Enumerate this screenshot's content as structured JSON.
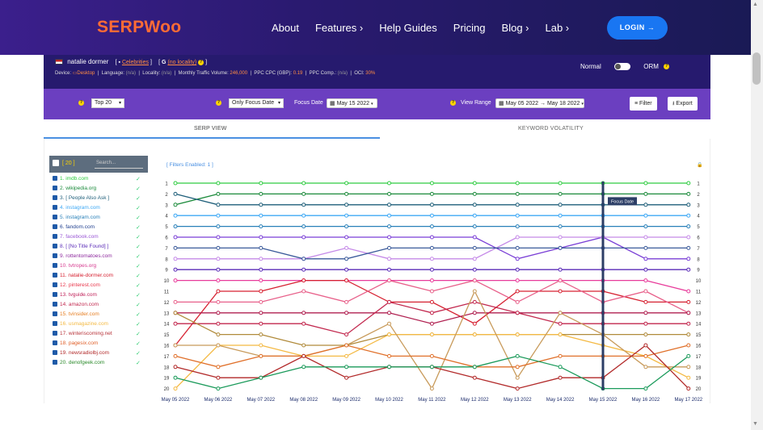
{
  "nav": {
    "logo": "SERPWoo",
    "items": [
      "About",
      "Features ›",
      "Help Guides",
      "Pricing",
      "Blog ›",
      "Lab ›"
    ],
    "login": "LOGIN →"
  },
  "info": {
    "keyword": "natalie dormer",
    "category": "Celebrities",
    "engine": "G",
    "locality": "(no locality)",
    "device_label": "Device:",
    "device": "Desktop",
    "language_label": "Language:",
    "language": "(n/a)",
    "locality_label": "Locality:",
    "locality_val": "(n/a)",
    "traffic_label": "Monthly Traffic Volume:",
    "traffic": "246,000",
    "ppc_label": "PPC CPC (GBP):",
    "ppc": "0.19",
    "comp_label": "PPC Comp.:",
    "comp": "(n/a)",
    "oci_label": "OCI:",
    "oci": "30%",
    "mode_normal": "Normal",
    "mode_orm": "ORM"
  },
  "filters": {
    "top": "Top 20",
    "focus_only": "Only Focus Date",
    "focus_date_label": "Focus Date",
    "focus_date": "May 15 2022",
    "view_range_label": "View Range",
    "view_range": "May 05 2022 → May 18 2022",
    "filter_btn": "Filter",
    "export_btn": "Export"
  },
  "tabs": {
    "serp_view": "SERP VIEW",
    "volatility": "KEYWORD VOLATILITY"
  },
  "panel": {
    "count": "[ 20 ]",
    "search_placeholder": "Search...",
    "filters_enabled": "[ Filters Enabled: 1 ]"
  },
  "domains": [
    {
      "label": "1. imdb.com",
      "color": "#2ecc40"
    },
    {
      "label": "2. wikipedia.org",
      "color": "#1a8a3a"
    },
    {
      "label": "3. [ People Also Ask ]",
      "color": "#1f5f7a"
    },
    {
      "label": "4. instagram.com",
      "color": "#3fa9f5"
    },
    {
      "label": "5. instagram.com",
      "color": "#2980b9"
    },
    {
      "label": "6. fandom.com",
      "color": "#1f3f8f"
    },
    {
      "label": "7. facebook.com",
      "color": "#9b59d6"
    },
    {
      "label": "8. [ [No Title Found] ]",
      "color": "#5b2cb8"
    },
    {
      "label": "9. rottentomatoes.com",
      "color": "#8e2a9e"
    },
    {
      "label": "10. tvtropes.org",
      "color": "#d63a8f"
    },
    {
      "label": "11. natalie-dormer.com",
      "color": "#d62030"
    },
    {
      "label": "12. pinterest.com",
      "color": "#e8354a"
    },
    {
      "label": "13. tvguide.com",
      "color": "#c0235a"
    },
    {
      "label": "14. amazon.com",
      "color": "#c2284e"
    },
    {
      "label": "15. tvinsider.com",
      "color": "#e67e22"
    },
    {
      "label": "16. usmagazine.com",
      "color": "#f4b942"
    },
    {
      "label": "17. winteriscoming.net",
      "color": "#b8343a"
    },
    {
      "label": "18. pagesix.com",
      "color": "#e0602a"
    },
    {
      "label": "19. newsradiolbj.com",
      "color": "#b22a2a"
    },
    {
      "label": "20. denofgeek.com",
      "color": "#2a8a2a"
    }
  ],
  "chart_data": {
    "type": "line",
    "x": [
      "May 05 2022",
      "May 06 2022",
      "May 07 2022",
      "May 08 2022",
      "May 09 2022",
      "May 10 2022",
      "May 11 2022",
      "May 12 2022",
      "May 13 2022",
      "May 14 2022",
      "May 15 2022",
      "May 16 2022",
      "May 17 2022"
    ],
    "ylim": [
      1,
      20
    ],
    "y_reversed": true,
    "focus_date": "May 15 2022",
    "focus_label": "Focus Date",
    "series": [
      {
        "color": "#2ecc40",
        "values": [
          1,
          1,
          1,
          1,
          1,
          1,
          1,
          1,
          1,
          1,
          1,
          1,
          1
        ]
      },
      {
        "color": "#1a8a3a",
        "values": [
          3,
          2,
          2,
          2,
          2,
          2,
          2,
          2,
          2,
          2,
          2,
          2,
          2
        ]
      },
      {
        "color": "#1f5f7a",
        "values": [
          2,
          3,
          3,
          3,
          3,
          3,
          3,
          3,
          3,
          3,
          3,
          3,
          3
        ]
      },
      {
        "color": "#3fa9f5",
        "values": [
          4,
          4,
          4,
          4,
          4,
          4,
          4,
          4,
          4,
          4,
          4,
          4,
          4
        ]
      },
      {
        "color": "#2980b9",
        "values": [
          5,
          5,
          5,
          5,
          5,
          5,
          5,
          5,
          5,
          5,
          5,
          5,
          5
        ]
      },
      {
        "color": "#7a3fd6",
        "values": [
          6,
          6,
          6,
          6,
          6,
          6,
          6,
          6,
          8,
          7,
          6,
          8,
          8
        ]
      },
      {
        "color": "#c58ae8",
        "values": [
          8,
          8,
          8,
          8,
          7,
          8,
          8,
          8,
          6,
          6,
          6,
          6,
          6
        ]
      },
      {
        "color": "#3a5a9a",
        "values": [
          7,
          7,
          7,
          8,
          8,
          7,
          7,
          7,
          7,
          7,
          7,
          7,
          7
        ]
      },
      {
        "color": "#5b2cb8",
        "values": [
          9,
          9,
          9,
          9,
          9,
          9,
          9,
          9,
          9,
          9,
          9,
          9,
          9
        ]
      },
      {
        "color": "#e83a9a",
        "values": [
          10,
          10,
          10,
          10,
          10,
          10,
          10,
          10,
          10,
          10,
          10,
          10,
          11
        ]
      },
      {
        "color": "#d62030",
        "values": [
          16,
          11,
          11,
          10,
          10,
          12,
          12,
          14,
          11,
          11,
          11,
          12,
          12
        ]
      },
      {
        "color": "#e8608a",
        "values": [
          12,
          12,
          12,
          11,
          12,
          10,
          11,
          10,
          12,
          10,
          12,
          11,
          13
        ]
      },
      {
        "color": "#b02050",
        "values": [
          13,
          13,
          13,
          13,
          13,
          13,
          14,
          13,
          13,
          13,
          13,
          13,
          13
        ]
      },
      {
        "color": "#c2284e",
        "values": [
          14,
          14,
          14,
          14,
          15,
          12,
          13,
          12,
          13,
          14,
          14,
          14,
          14
        ]
      },
      {
        "color": "#b08a3a",
        "values": [
          13,
          15,
          15,
          16,
          16,
          15,
          15,
          15,
          15,
          15,
          15,
          15,
          15
        ]
      },
      {
        "color": "#f4b942",
        "values": [
          20,
          16,
          16,
          17,
          17,
          15,
          15,
          15,
          15,
          15,
          16,
          17,
          19
        ]
      },
      {
        "color": "#c89a5a",
        "values": [
          16,
          16,
          17,
          17,
          16,
          14,
          20,
          11,
          19,
          13,
          15,
          18,
          18
        ]
      },
      {
        "color": "#e0702a",
        "values": [
          17,
          18,
          17,
          17,
          16,
          17,
          17,
          18,
          18,
          17,
          17,
          17,
          16
        ]
      },
      {
        "color": "#b22a2a",
        "values": [
          18,
          19,
          19,
          17,
          19,
          18,
          18,
          19,
          20,
          19,
          19,
          16,
          20
        ]
      },
      {
        "color": "#1a9a5a",
        "values": [
          19,
          20,
          19,
          18,
          18,
          18,
          18,
          18,
          17,
          18,
          20,
          20,
          17
        ]
      }
    ]
  }
}
